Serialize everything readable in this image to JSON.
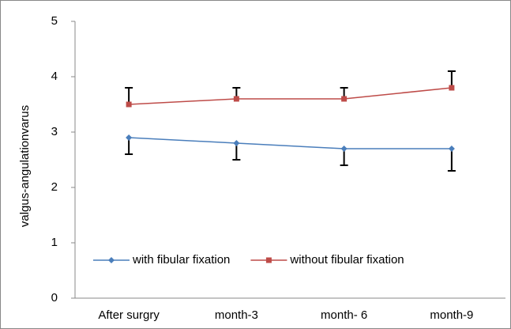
{
  "chart_data": {
    "type": "line",
    "y_label": "valgus-angulationvarus",
    "categories": [
      "After surgry",
      "month-3",
      "month- 6",
      "month-9"
    ],
    "series": [
      {
        "name": "with fibular fixation",
        "color": "#4a7ebb",
        "marker": "diamond",
        "values": [
          2.9,
          2.8,
          2.7,
          2.7
        ],
        "errors": [
          0.3,
          0.3,
          0.3,
          0.4
        ],
        "error_direction": "down"
      },
      {
        "name": "without fibular fixation",
        "color": "#be4b48",
        "marker": "square",
        "values": [
          3.5,
          3.6,
          3.6,
          3.8
        ],
        "errors": [
          0.3,
          0.2,
          0.2,
          0.3
        ],
        "error_direction": "up"
      }
    ],
    "ylim": [
      0,
      5
    ],
    "yticks": [
      0,
      1,
      2,
      3,
      4,
      5
    ],
    "grid": false,
    "legend": "bottom"
  }
}
